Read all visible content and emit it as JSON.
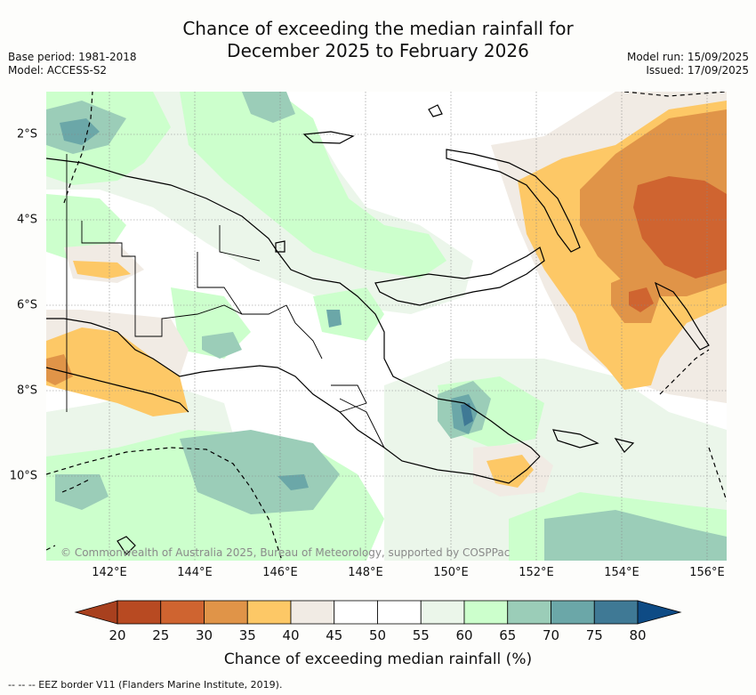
{
  "header": {
    "title_line1": "Chance of exceeding the median rainfall for",
    "title_line2": "December 2025 to February 2026",
    "base_period": "Base period: 1981-2018",
    "model": "Model: ACCESS-S2",
    "model_run": "Model run: 15/09/2025",
    "issued": "Issued: 17/09/2025"
  },
  "map": {
    "lat_labels": [
      "2°S",
      "4°S",
      "6°S",
      "8°S",
      "10°S"
    ],
    "lon_labels": [
      "142°E",
      "144°E",
      "146°E",
      "148°E",
      "150°E",
      "152°E",
      "154°E",
      "156°E"
    ],
    "copyright": "© Commonwealth of Australia 2025, Bureau of Meteorology, supported by COSPPac"
  },
  "colorbar": {
    "ticks": [
      "20",
      "25",
      "30",
      "35",
      "40",
      "45",
      "50",
      "55",
      "60",
      "65",
      "70",
      "75",
      "80"
    ],
    "colors": [
      "#a8401e",
      "#b84a22",
      "#cf6430",
      "#e09448",
      "#fdc866",
      "#f1ebe4",
      "#ffffff",
      "#ffffff",
      "#ebf6ea",
      "#ccffcc",
      "#9bcdb8",
      "#6ba7a8",
      "#3f7995",
      "#0e4b85"
    ],
    "label": "Chance of exceeding median rainfall (%)"
  },
  "footer": {
    "legend_text": "--  --  -- EEZ border V11 (Flanders Marine Institute, 2019)."
  }
}
